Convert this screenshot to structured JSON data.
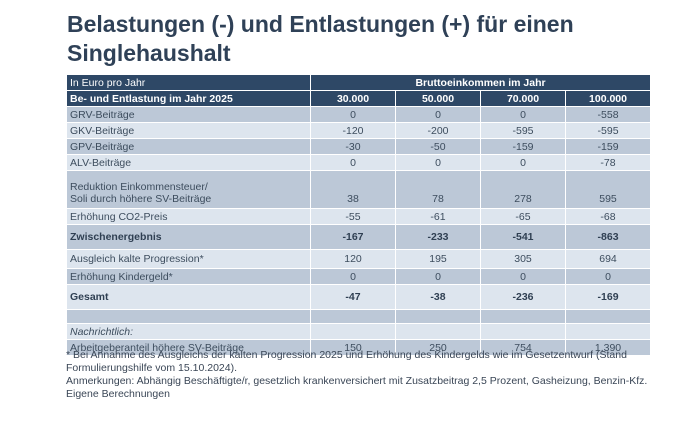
{
  "title": "Belastungen (-) und Entlastungen (+) für einen Singlehaushalt",
  "table": {
    "unit_label": "In Euro pro Jahr",
    "group_header": "Bruttoeinkommen im Jahr",
    "row_header": "Be- und Entlastung im Jahr 2025",
    "columns": [
      "30.000",
      "50.000",
      "70.000",
      "100.000"
    ],
    "rows": [
      {
        "label": "GRV-Beiträge",
        "values": [
          "0",
          "0",
          "0",
          "-558"
        ]
      },
      {
        "label": "GKV-Beiträge",
        "values": [
          "-120",
          "-200",
          "-595",
          "-595"
        ]
      },
      {
        "label": "GPV-Beiträge",
        "values": [
          "-30",
          "-50",
          "-159",
          "-159"
        ]
      },
      {
        "label": "ALV-Beiträge",
        "values": [
          "0",
          "0",
          "0",
          "-78"
        ]
      },
      {
        "label_line1": "Reduktion Einkommensteuer/",
        "label_line2": "Soli durch höhere SV-Beiträge",
        "values": [
          "38",
          "78",
          "278",
          "595"
        ]
      },
      {
        "label": "Erhöhung CO2-Preis",
        "values": [
          "-55",
          "-61",
          "-65",
          "-68"
        ]
      },
      {
        "label": "Zwischenergebnis",
        "values": [
          "-167",
          "-233",
          "-541",
          "-863"
        ]
      },
      {
        "label": "Ausgleich kalte Progression*",
        "values": [
          "120",
          "195",
          "305",
          "694"
        ]
      },
      {
        "label": "Erhöhung Kindergeld*",
        "values": [
          "0",
          "0",
          "0",
          "0"
        ]
      },
      {
        "label": "Gesamt",
        "values": [
          "-47",
          "-38",
          "-236",
          "-169"
        ]
      },
      {
        "label": "Nachrichtlich:"
      },
      {
        "label": "Arbeitgeberanteil höhere SV-Beiträge",
        "values": [
          "150",
          "250",
          "754",
          "1.390"
        ]
      }
    ]
  },
  "notes": {
    "footnote": "* Bei Annahme des Ausgleichs der kalten Progression 2025 und Erhöhung des Kindergelds wie im Gesetzentwurf (Stand Formulierungshilfe vom 15.10.2024).",
    "remarks": "Anmerkungen: Abhängig Beschäftigte/r, gesetzlich krankenversichert mit Zusatzbeitrag 2,5 Prozent, Gasheizung, Benzin-Kfz.",
    "source": "Eigene Berechnungen"
  }
}
